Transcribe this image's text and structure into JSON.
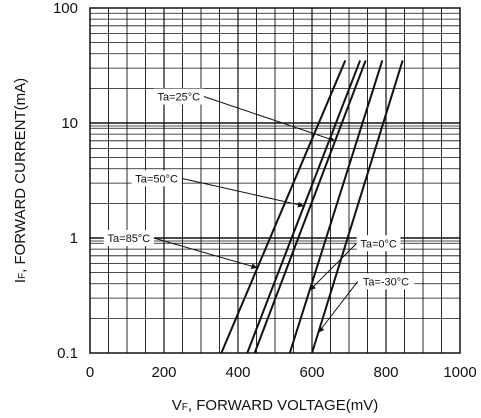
{
  "chart_data": {
    "type": "line",
    "xlabel_parts": {
      "sym": "V",
      "sub": "F",
      "rest": ", FORWARD VOLTAGE(mV)"
    },
    "ylabel_parts": {
      "sym": "I",
      "sub": "F",
      "rest": ", FORWARD CURRENT(mA)"
    },
    "xlim": [
      0,
      1000
    ],
    "ylim": [
      0.1,
      100
    ],
    "yscale": "log",
    "x_ticks": [
      0,
      200,
      400,
      600,
      800,
      1000
    ],
    "x_tick_labels": [
      "0",
      "200",
      "400",
      "600",
      "800",
      "1000"
    ],
    "y_ticks": [
      0.1,
      1,
      10,
      100
    ],
    "y_tick_labels": [
      "0.1",
      "1",
      "10",
      "100"
    ],
    "grid": true,
    "series": [
      {
        "name": "Ta=85°C",
        "x": [
          355,
          690
        ],
        "y": [
          0.1,
          35
        ]
      },
      {
        "name": "Ta=50°C",
        "x": [
          425,
          730
        ],
        "y": [
          0.1,
          35
        ]
      },
      {
        "name": "Ta=25°C",
        "x": [
          445,
          745
        ],
        "y": [
          0.1,
          35
        ]
      },
      {
        "name": "Ta=0°C",
        "x": [
          540,
          790
        ],
        "y": [
          0.1,
          35
        ]
      },
      {
        "name": "Ta=-30°C",
        "x": [
          600,
          845
        ],
        "y": [
          0.1,
          35
        ]
      }
    ],
    "annotations": [
      {
        "text": "Ta=25°C",
        "series": 2,
        "point_y": 7.0,
        "label_x": 240,
        "label_y": 17
      },
      {
        "text": "Ta=50°C",
        "series": 1,
        "point_y": 1.9,
        "label_x": 180,
        "label_y": 3.3
      },
      {
        "text": "Ta=85°C",
        "series": 0,
        "point_y": 0.55,
        "label_x": 105,
        "label_y": 1.0
      },
      {
        "text": "Ta=0°C",
        "series": 3,
        "point_y": 0.35,
        "label_x": 780,
        "label_y": 0.9
      },
      {
        "text": "Ta=-30°C",
        "series": 4,
        "point_y": 0.15,
        "label_x": 800,
        "label_y": 0.42
      }
    ]
  }
}
